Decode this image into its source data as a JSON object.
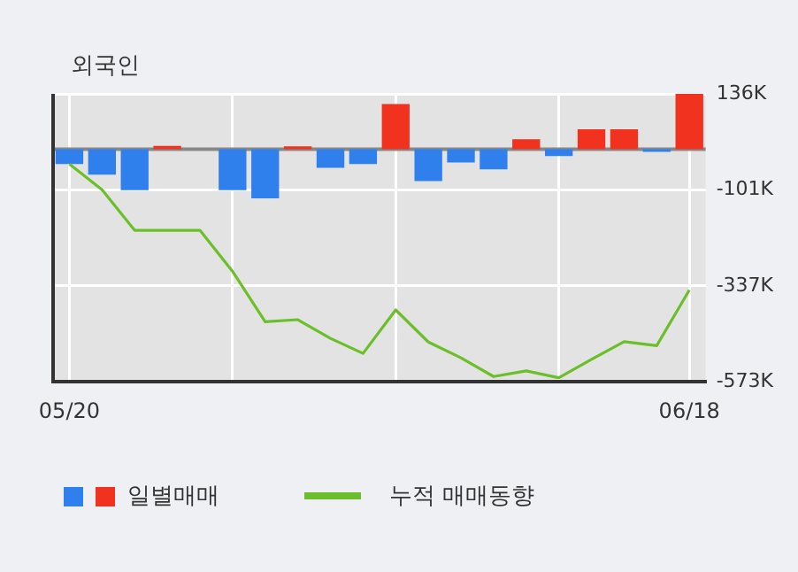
{
  "chart_data": {
    "type": "bar",
    "title": "외국인",
    "categories": [
      "05/20",
      null,
      null,
      null,
      null,
      null,
      null,
      null,
      null,
      null,
      null,
      null,
      null,
      null,
      null,
      null,
      null,
      null,
      null,
      "06/18"
    ],
    "series": [
      {
        "name": "일별매매",
        "colors": [
          "#2f80ed",
          "#2f80ed",
          "#2f80ed",
          "#f0321e",
          "#2f80ed",
          "#2f80ed",
          "#2f80ed",
          "#f0321e",
          "#2f80ed",
          "#2f80ed",
          "#f0321e",
          "#2f80ed",
          "#2f80ed",
          "#2f80ed",
          "#f0321e",
          "#2f80ed",
          "#f0321e",
          "#f0321e",
          "#2f80ed",
          "#f0321e"
        ],
        "values": [
          -37000,
          -63000,
          -101000,
          8000,
          0,
          -101000,
          -121000,
          7000,
          -46000,
          -37000,
          111000,
          -79000,
          -33000,
          -50000,
          24000,
          -17000,
          49000,
          49000,
          -7000,
          136000
        ]
      },
      {
        "name": "누적 매매동향",
        "type": "line",
        "color": "#6cbf2a",
        "values": [
          -37000,
          -100000,
          -200000,
          -200000,
          -200000,
          -301000,
          -425000,
          -420000,
          -466000,
          -503000,
          -396000,
          -475000,
          -514000,
          -560000,
          -546000,
          -563000,
          -518000,
          -474000,
          -484000,
          -347000
        ]
      }
    ],
    "ylim": [
      -573000,
      136000
    ],
    "yticks": [
      {
        "value": 136000,
        "label": "136K"
      },
      {
        "value": -101000,
        "label": "-101K"
      },
      {
        "value": -337000,
        "label": "-337K"
      },
      {
        "value": -573000,
        "label": "-573K"
      }
    ],
    "grid": true,
    "legend": "bottom",
    "marker": "none"
  }
}
